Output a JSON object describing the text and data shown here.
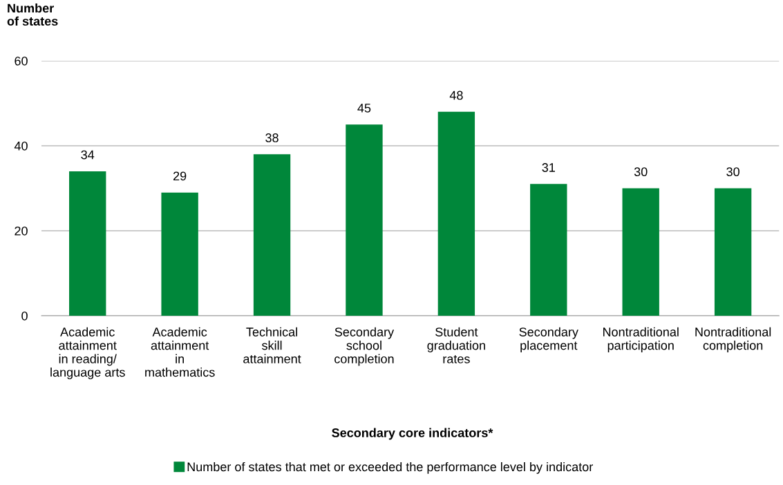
{
  "chart_data": {
    "type": "bar",
    "ylabel": "Number\nof states",
    "xlabel": "Secondary core indicators*",
    "categories": [
      "Academic\nattainment\nin reading/\nlanguage arts",
      "Academic\nattainment\nin\nmathematics",
      "Technical\nskill\nattainment",
      "Secondary\nschool\ncompletion",
      "Student\ngraduation\nrates",
      "Secondary\nplacement",
      "Nontraditional\nparticipation",
      "Nontraditional\ncompletion"
    ],
    "series": [
      {
        "name": "Number of states that met or exceeded the performance level by indicator",
        "color": "#00873a",
        "values": [
          34,
          29,
          38,
          45,
          48,
          31,
          30,
          30
        ]
      }
    ],
    "ylim": [
      0,
      60
    ],
    "yticks": [
      0,
      20,
      40,
      60
    ],
    "grid": "y",
    "legend": "bottom",
    "data_labels": true
  }
}
